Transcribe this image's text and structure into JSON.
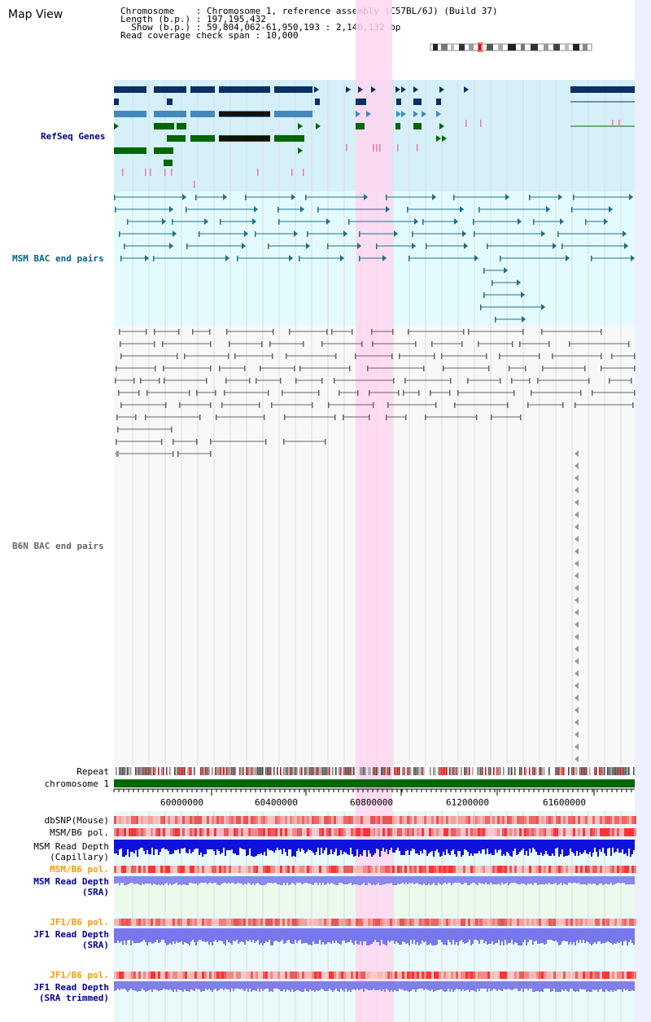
{
  "page": {
    "title": "Map View"
  },
  "info": {
    "chromosome_key": "Chromosome    :",
    "chromosome_val": "Chromosome 1, reference assembly (C57BL/6J) (Build 37)",
    "length_key": "Length (b.p.) :",
    "length_val": "197,195,432",
    "show_key": "  Show (b.p.) :",
    "show_val": "59,804,062-61,950,193 : 2,146,132 bp",
    "span_key": "Read coverage check span :",
    "span_val": "10,000"
  },
  "tracks": {
    "refseq": "RefSeq Genes",
    "msm_bac": "MSM BAC end pairs",
    "b6n_bac": "B6N BAC end pairs",
    "repeat": "Repeat",
    "chrom": "chromosome 1",
    "dbsnp": "dbSNP(Mouse)",
    "msm_b6_pol_1": "MSM/B6 pol.",
    "msm_depth_cap": "MSM Read Depth\n(Capillary)",
    "msm_b6_pol_2": "MSM/B6 pol.",
    "msm_depth_sra": "MSM Read Depth\n(SRA)",
    "jf1_b6_pol_1": "JF1/B6 pol.",
    "jf1_depth_sra": "JF1 Read Depth\n(SRA)",
    "jf1_b6_pol_2": "JF1/B6 pol.",
    "jf1_depth_trim": "JF1 Read Depth\n(SRA trimmed)"
  },
  "axis": {
    "ticks": [
      "60000000",
      "60400000",
      "60800000",
      "61200000",
      "61600000"
    ]
  },
  "colors": {
    "refseq_label": "#000088",
    "msm_label": "#006688",
    "b6n_label": "#666666",
    "orange": "#ff9900",
    "navy": "#000099",
    "highlight": "#ffd6f0",
    "chrom_bar": "#006600"
  }
}
